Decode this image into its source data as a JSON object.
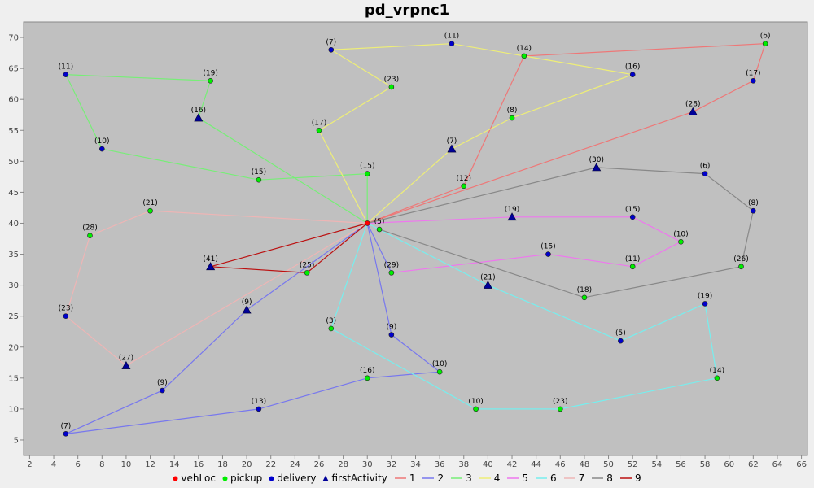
{
  "chart_data": {
    "type": "scatter",
    "title": "pd_vrpnc1",
    "xlabel": "",
    "ylabel": "",
    "xlim": [
      1.5,
      66.5
    ],
    "ylim": [
      2.5,
      72.5
    ],
    "xticks": [
      2,
      4,
      6,
      8,
      10,
      12,
      14,
      16,
      18,
      20,
      22,
      24,
      26,
      28,
      30,
      32,
      34,
      36,
      38,
      40,
      42,
      44,
      46,
      48,
      50,
      52,
      54,
      56,
      58,
      60,
      62,
      64,
      66
    ],
    "yticks": [
      5,
      10,
      15,
      20,
      25,
      30,
      35,
      40,
      45,
      50,
      55,
      60,
      65,
      70
    ],
    "grid": false,
    "legend_position": "bottom",
    "colors": {
      "plot_bg": "#c0c0c0",
      "vehLoc": "#ff0000",
      "pickup": "#00ee00",
      "delivery": "#0000cc",
      "firstActivity": "#000099"
    },
    "legend": [
      {
        "label": "vehLoc",
        "kind": "marker",
        "marker": "circle",
        "color": "#ff0000"
      },
      {
        "label": "pickup",
        "kind": "marker",
        "marker": "circle",
        "color": "#00ee00"
      },
      {
        "label": "delivery",
        "kind": "marker",
        "marker": "circle",
        "color": "#0000cc"
      },
      {
        "label": "firstActivity",
        "kind": "marker",
        "marker": "triangle",
        "color": "#000099"
      },
      {
        "label": "1",
        "kind": "line",
        "color": "#ee7777"
      },
      {
        "label": "2",
        "kind": "line",
        "color": "#7777ee"
      },
      {
        "label": "3",
        "kind": "line",
        "color": "#77ee77"
      },
      {
        "label": "4",
        "kind": "line",
        "color": "#eeee77"
      },
      {
        "label": "5",
        "kind": "line",
        "color": "#ee77ee"
      },
      {
        "label": "6",
        "kind": "line",
        "color": "#77eeee"
      },
      {
        "label": "7",
        "kind": "line",
        "color": "#eeb5b5"
      },
      {
        "label": "8",
        "kind": "line",
        "color": "#888888"
      },
      {
        "label": "9",
        "kind": "line",
        "color": "#bb1111"
      }
    ],
    "depot": {
      "x": 30,
      "y": 40
    },
    "series": [
      {
        "name": "1",
        "color": "#ee7777",
        "points": [
          [
            30,
            40
          ],
          [
            38,
            46
          ],
          [
            43,
            67
          ],
          [
            63,
            69
          ],
          [
            62,
            63
          ],
          [
            57,
            58
          ],
          [
            30,
            40
          ]
        ]
      },
      {
        "name": "2",
        "color": "#7777ee",
        "points": [
          [
            30,
            40
          ],
          [
            32,
            22
          ],
          [
            36,
            16
          ],
          [
            30,
            15
          ],
          [
            21,
            10
          ],
          [
            5,
            6
          ],
          [
            13,
            13
          ],
          [
            20,
            26
          ],
          [
            30,
            40
          ],
          [
            32,
            32
          ]
        ]
      },
      {
        "name": "3",
        "color": "#77ee77",
        "points": [
          [
            30,
            40
          ],
          [
            16,
            57
          ],
          [
            17,
            63
          ],
          [
            5,
            64
          ],
          [
            8,
            52
          ],
          [
            21,
            47
          ],
          [
            30,
            48
          ],
          [
            30,
            40
          ]
        ]
      },
      {
        "name": "4",
        "color": "#eeee77",
        "points": [
          [
            30,
            40
          ],
          [
            26,
            55
          ],
          [
            32,
            62
          ],
          [
            27,
            68
          ],
          [
            37,
            69
          ],
          [
            43,
            67
          ],
          [
            52,
            64
          ],
          [
            42,
            57
          ],
          [
            37,
            52
          ],
          [
            30,
            40
          ]
        ]
      },
      {
        "name": "5",
        "color": "#ee77ee",
        "points": [
          [
            30,
            40
          ],
          [
            42,
            41
          ],
          [
            52,
            41
          ],
          [
            56,
            37
          ],
          [
            52,
            33
          ],
          [
            45,
            35
          ],
          [
            32,
            32
          ]
        ]
      },
      {
        "name": "6",
        "color": "#77eeee",
        "points": [
          [
            30,
            40
          ],
          [
            40,
            30
          ],
          [
            51,
            21
          ],
          [
            58,
            27
          ],
          [
            59,
            15
          ],
          [
            46,
            10
          ],
          [
            39,
            10
          ],
          [
            27,
            23
          ],
          [
            30,
            40
          ]
        ]
      },
      {
        "name": "7",
        "color": "#eeb5b5",
        "points": [
          [
            30,
            40
          ],
          [
            12,
            42
          ],
          [
            7,
            38
          ],
          [
            5,
            25
          ],
          [
            10,
            17
          ],
          [
            30,
            40
          ]
        ]
      },
      {
        "name": "8",
        "color": "#888888",
        "points": [
          [
            30,
            40
          ],
          [
            49,
            49
          ],
          [
            58,
            48
          ],
          [
            62,
            42
          ],
          [
            61,
            33
          ],
          [
            48,
            28
          ],
          [
            31,
            39
          ]
        ]
      },
      {
        "name": "9",
        "color": "#bb1111",
        "points": [
          [
            30,
            40
          ],
          [
            17,
            33
          ],
          [
            25,
            32
          ],
          [
            30,
            40
          ]
        ]
      }
    ],
    "activities": [
      {
        "x": 30,
        "y": 40,
        "kind": "vehLoc",
        "label": ""
      },
      {
        "x": 31,
        "y": 39,
        "kind": "pickup",
        "label": "(5)"
      },
      {
        "x": 38,
        "y": 46,
        "kind": "pickup",
        "label": "(12)"
      },
      {
        "x": 43,
        "y": 67,
        "kind": "pickup",
        "label": "(14)"
      },
      {
        "x": 63,
        "y": 69,
        "kind": "pickup",
        "label": "(6)"
      },
      {
        "x": 62,
        "y": 63,
        "kind": "delivery",
        "label": "(17)"
      },
      {
        "x": 57,
        "y": 58,
        "kind": "firstActivity",
        "label": "(28)"
      },
      {
        "x": 32,
        "y": 32,
        "kind": "pickup",
        "label": "(29)"
      },
      {
        "x": 32,
        "y": 22,
        "kind": "delivery",
        "label": "(9)"
      },
      {
        "x": 36,
        "y": 16,
        "kind": "pickup",
        "label": "(10)"
      },
      {
        "x": 30,
        "y": 15,
        "kind": "pickup",
        "label": "(16)"
      },
      {
        "x": 21,
        "y": 10,
        "kind": "delivery",
        "label": "(13)"
      },
      {
        "x": 5,
        "y": 6,
        "kind": "delivery",
        "label": "(7)"
      },
      {
        "x": 13,
        "y": 13,
        "kind": "delivery",
        "label": "(9)"
      },
      {
        "x": 20,
        "y": 26,
        "kind": "firstActivity",
        "label": "(9)"
      },
      {
        "x": 16,
        "y": 57,
        "kind": "firstActivity",
        "label": "(16)"
      },
      {
        "x": 17,
        "y": 63,
        "kind": "pickup",
        "label": "(19)"
      },
      {
        "x": 5,
        "y": 64,
        "kind": "delivery",
        "label": "(11)"
      },
      {
        "x": 8,
        "y": 52,
        "kind": "delivery",
        "label": "(10)"
      },
      {
        "x": 21,
        "y": 47,
        "kind": "pickup",
        "label": "(15)"
      },
      {
        "x": 30,
        "y": 48,
        "kind": "pickup",
        "label": "(15)"
      },
      {
        "x": 26,
        "y": 55,
        "kind": "pickup",
        "label": "(17)"
      },
      {
        "x": 32,
        "y": 62,
        "kind": "pickup",
        "label": "(23)"
      },
      {
        "x": 27,
        "y": 68,
        "kind": "delivery",
        "label": "(7)"
      },
      {
        "x": 37,
        "y": 69,
        "kind": "delivery",
        "label": "(11)"
      },
      {
        "x": 52,
        "y": 64,
        "kind": "delivery",
        "label": "(16)"
      },
      {
        "x": 42,
        "y": 57,
        "kind": "pickup",
        "label": "(8)"
      },
      {
        "x": 37,
        "y": 52,
        "kind": "firstActivity",
        "label": "(7)"
      },
      {
        "x": 42,
        "y": 41,
        "kind": "firstActivity",
        "label": "(19)"
      },
      {
        "x": 52,
        "y": 41,
        "kind": "delivery",
        "label": "(15)"
      },
      {
        "x": 56,
        "y": 37,
        "kind": "pickup",
        "label": "(10)"
      },
      {
        "x": 52,
        "y": 33,
        "kind": "pickup",
        "label": "(11)"
      },
      {
        "x": 45,
        "y": 35,
        "kind": "delivery",
        "label": "(15)"
      },
      {
        "x": 40,
        "y": 30,
        "kind": "firstActivity",
        "label": "(21)"
      },
      {
        "x": 51,
        "y": 21,
        "kind": "delivery",
        "label": "(5)"
      },
      {
        "x": 58,
        "y": 27,
        "kind": "delivery",
        "label": "(19)"
      },
      {
        "x": 59,
        "y": 15,
        "kind": "pickup",
        "label": "(14)"
      },
      {
        "x": 46,
        "y": 10,
        "kind": "pickup",
        "label": "(23)"
      },
      {
        "x": 39,
        "y": 10,
        "kind": "pickup",
        "label": "(10)"
      },
      {
        "x": 27,
        "y": 23,
        "kind": "pickup",
        "label": "(3)"
      },
      {
        "x": 12,
        "y": 42,
        "kind": "pickup",
        "label": "(21)"
      },
      {
        "x": 7,
        "y": 38,
        "kind": "pickup",
        "label": "(28)"
      },
      {
        "x": 5,
        "y": 25,
        "kind": "delivery",
        "label": "(23)"
      },
      {
        "x": 10,
        "y": 17,
        "kind": "firstActivity",
        "label": "(27)"
      },
      {
        "x": 49,
        "y": 49,
        "kind": "firstActivity",
        "label": "(30)"
      },
      {
        "x": 58,
        "y": 48,
        "kind": "delivery",
        "label": "(6)"
      },
      {
        "x": 62,
        "y": 42,
        "kind": "delivery",
        "label": "(8)"
      },
      {
        "x": 61,
        "y": 33,
        "kind": "pickup",
        "label": "(26)"
      },
      {
        "x": 48,
        "y": 28,
        "kind": "pickup",
        "label": "(18)"
      },
      {
        "x": 17,
        "y": 33,
        "kind": "firstActivity",
        "label": "(41)"
      },
      {
        "x": 25,
        "y": 32,
        "kind": "pickup",
        "label": "(25)"
      }
    ]
  }
}
